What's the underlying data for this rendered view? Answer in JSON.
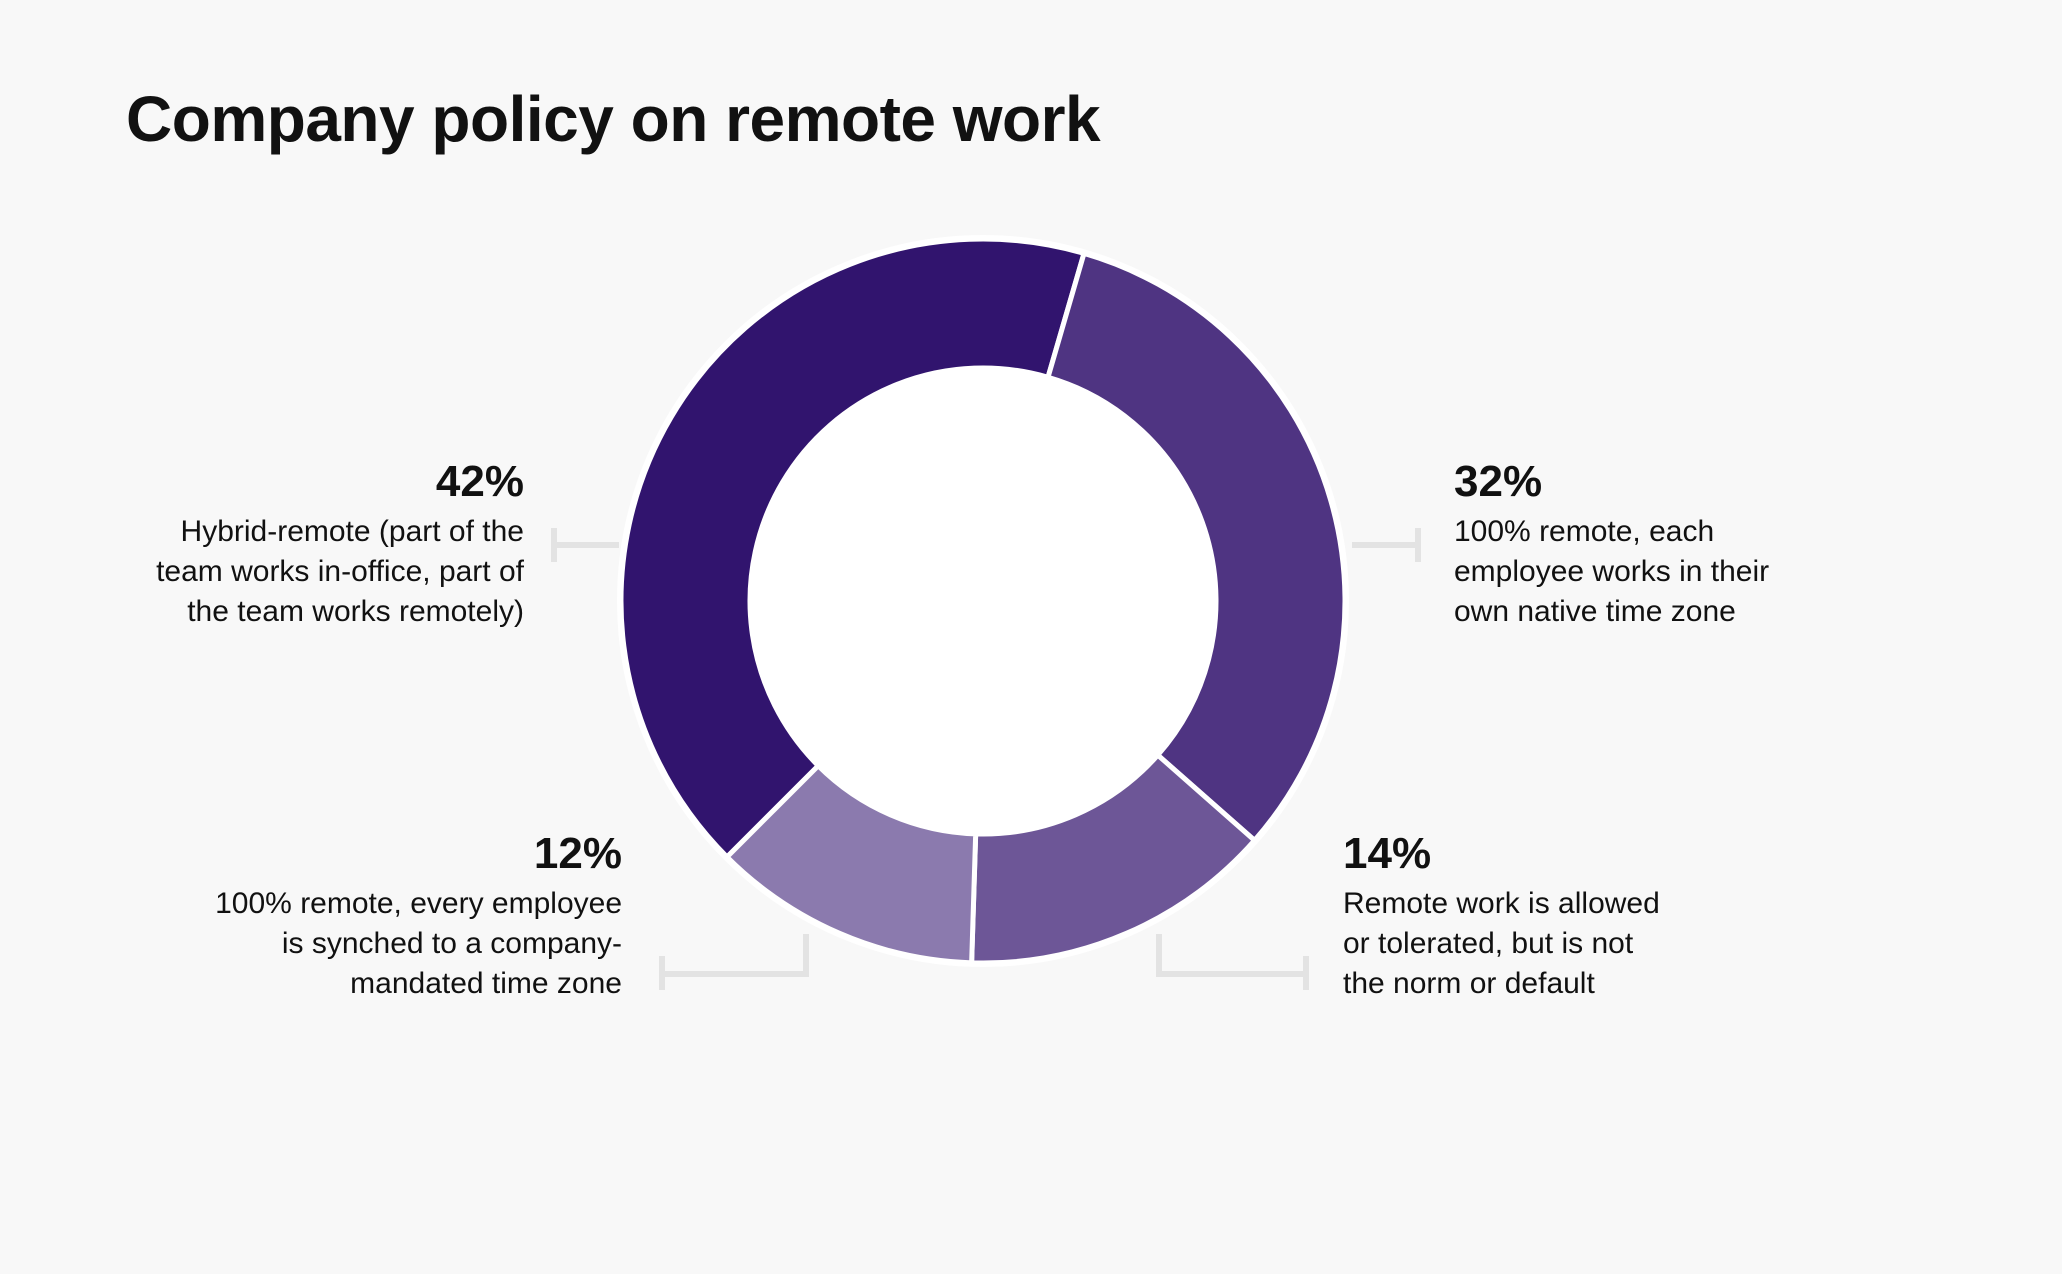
{
  "chart_data": {
    "type": "pie",
    "title": "Company policy on remote work",
    "slices": [
      {
        "label": "42%",
        "value": 42,
        "description": "Hybrid-remote (part of the\nteam works in-office, part of\nthe team works remotely)",
        "color": "#31146e"
      },
      {
        "label": "32%",
        "value": 32,
        "description": "100% remote, each\nemployee works in their\nown native time zone",
        "color": "#4f3482"
      },
      {
        "label": "14%",
        "value": 14,
        "description": "Remote work is allowed\nor tolerated, but is not\nthe norm or default",
        "color": "#6d5697"
      },
      {
        "label": "12%",
        "value": 12,
        "description": "100% remote, every employee\nis synched to a company-\nmandated time zone",
        "color": "#8b7aae"
      }
    ],
    "donut": true,
    "legend": "none"
  }
}
